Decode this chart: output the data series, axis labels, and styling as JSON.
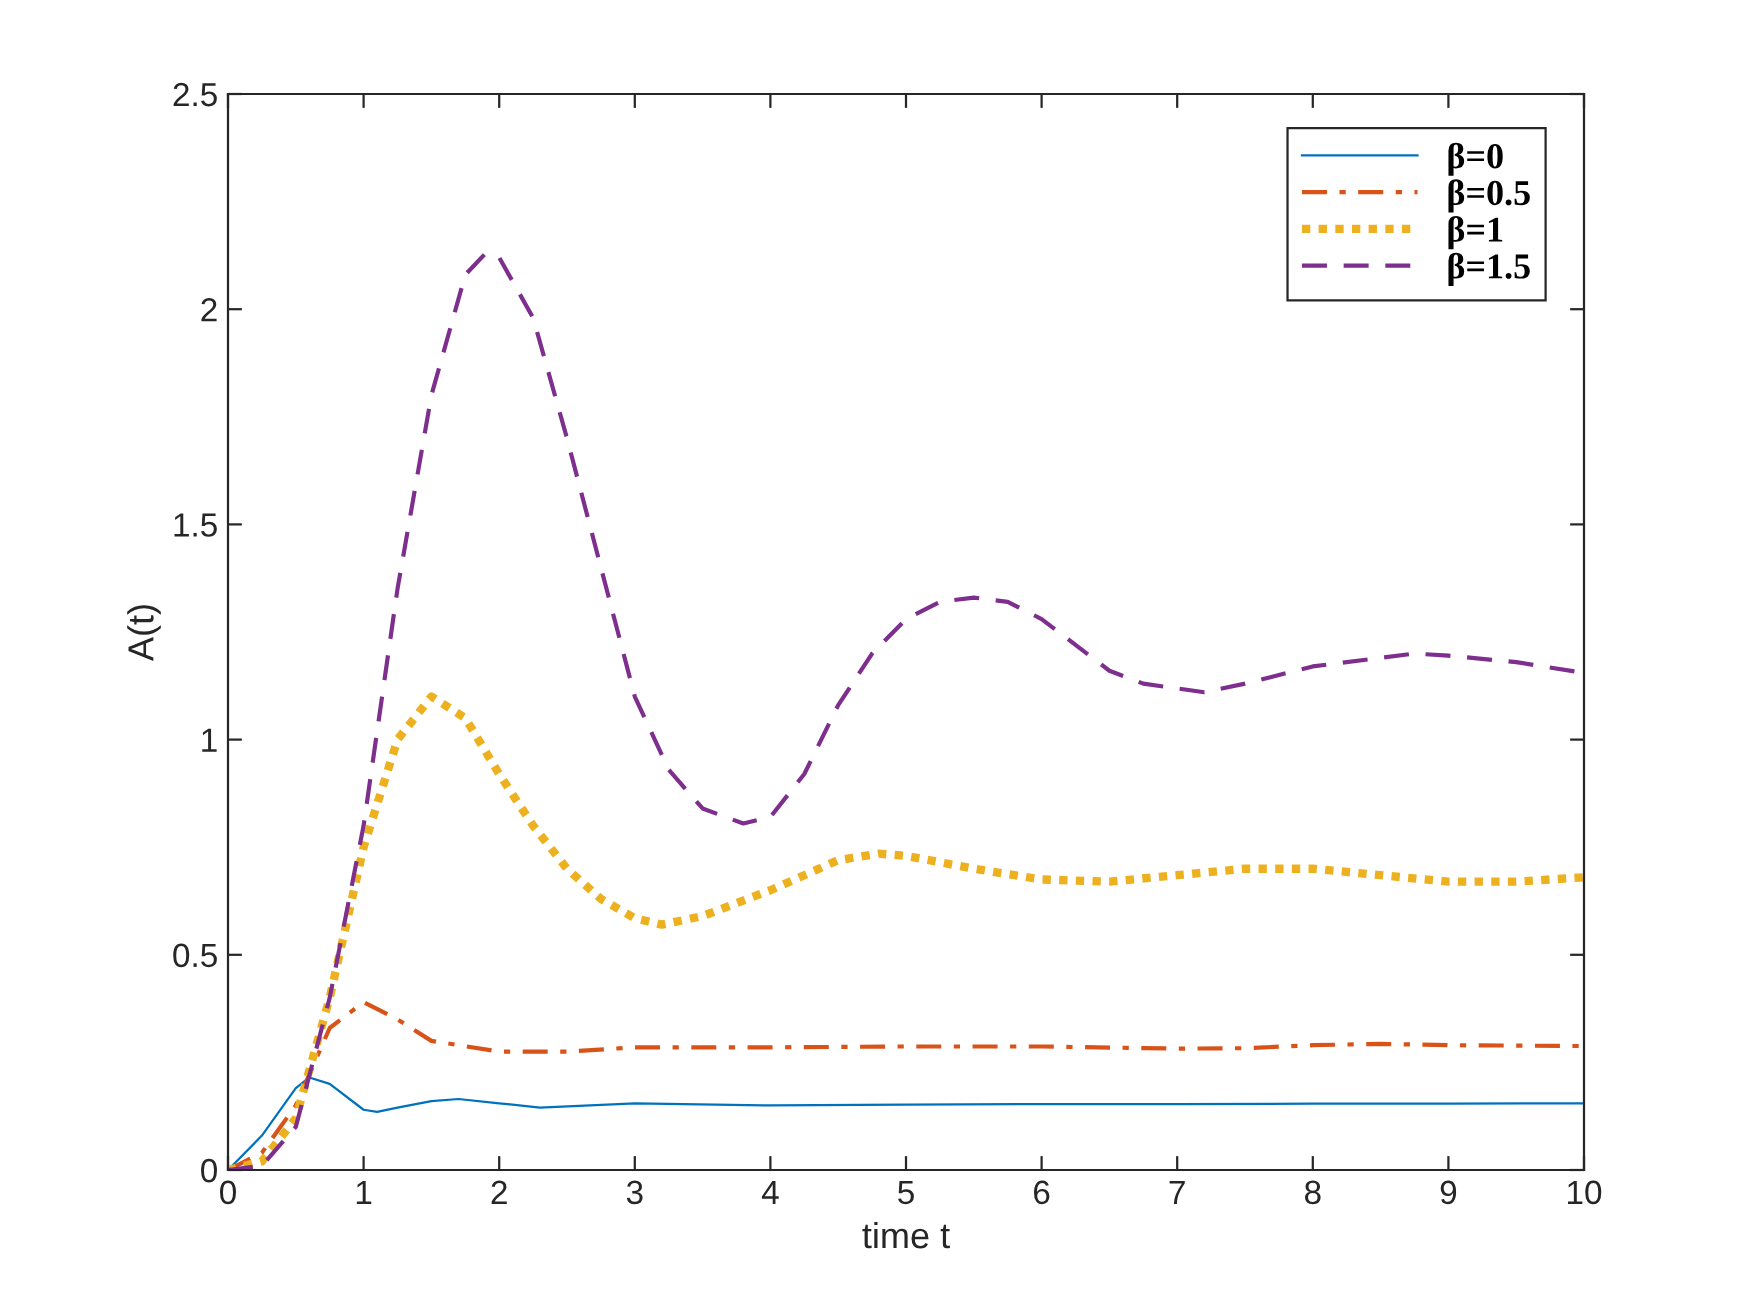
{
  "chart_data": {
    "type": "line",
    "xlabel": "time t",
    "ylabel": "A(t)",
    "xlim": [
      0,
      10
    ],
    "ylim": [
      0,
      2.5
    ],
    "xticks": [
      0,
      1,
      2,
      3,
      4,
      5,
      6,
      7,
      8,
      9,
      10
    ],
    "yticks": [
      0,
      0.5,
      1,
      1.5,
      2,
      2.5
    ],
    "grid": false,
    "legend": "top right",
    "marker": "none",
    "series": [
      {
        "name": "β=0",
        "color": "#0072bd",
        "line_style": "solid",
        "x": [
          0,
          0.25,
          0.5,
          0.6,
          0.75,
          1,
          1.1,
          1.25,
          1.5,
          1.7,
          2,
          2.3,
          3,
          4,
          5,
          6,
          7,
          8,
          9,
          10
        ],
        "values": [
          0,
          0.08,
          0.19,
          0.215,
          0.2,
          0.14,
          0.135,
          0.145,
          0.16,
          0.165,
          0.155,
          0.145,
          0.155,
          0.15,
          0.152,
          0.153,
          0.153,
          0.154,
          0.154,
          0.155
        ]
      },
      {
        "name": "β=0.5",
        "color": "#d95319",
        "line_style": "dashdot",
        "x": [
          0,
          0.25,
          0.5,
          0.75,
          1,
          1.25,
          1.5,
          2,
          2.5,
          3,
          4,
          5,
          6,
          7,
          7.5,
          8,
          8.5,
          9,
          10
        ],
        "values": [
          0,
          0.04,
          0.15,
          0.33,
          0.39,
          0.35,
          0.3,
          0.275,
          0.275,
          0.285,
          0.285,
          0.287,
          0.287,
          0.282,
          0.283,
          0.29,
          0.293,
          0.29,
          0.288
        ]
      },
      {
        "name": "β=1",
        "color": "#edb120",
        "line_style": "dotted",
        "x": [
          0,
          0.25,
          0.5,
          0.75,
          1,
          1.25,
          1.5,
          1.75,
          2,
          2.25,
          2.5,
          2.75,
          3,
          3.2,
          3.5,
          4,
          4.5,
          4.8,
          5,
          5.5,
          6,
          6.5,
          7,
          7.5,
          8,
          8.5,
          9,
          9.5,
          10
        ],
        "values": [
          0,
          0.02,
          0.12,
          0.4,
          0.75,
          1.0,
          1.1,
          1.05,
          0.92,
          0.8,
          0.7,
          0.63,
          0.585,
          0.57,
          0.59,
          0.65,
          0.72,
          0.735,
          0.73,
          0.7,
          0.675,
          0.67,
          0.685,
          0.7,
          0.7,
          0.685,
          0.67,
          0.67,
          0.68
        ]
      },
      {
        "name": "β=1.5",
        "color": "#7e2f8e",
        "line_style": "dashed",
        "x": [
          0,
          0.25,
          0.5,
          0.75,
          1,
          1.25,
          1.5,
          1.75,
          1.9,
          2,
          2.25,
          2.5,
          2.75,
          3,
          3.25,
          3.5,
          3.8,
          4,
          4.25,
          4.5,
          4.75,
          5,
          5.25,
          5.5,
          5.75,
          6,
          6.25,
          6.5,
          6.75,
          7.2,
          7.5,
          8,
          8.5,
          8.75,
          9,
          9.5,
          10
        ],
        "values": [
          0,
          0.01,
          0.1,
          0.4,
          0.8,
          1.35,
          1.8,
          2.08,
          2.13,
          2.12,
          1.98,
          1.7,
          1.4,
          1.1,
          0.93,
          0.84,
          0.805,
          0.82,
          0.92,
          1.08,
          1.2,
          1.28,
          1.32,
          1.33,
          1.32,
          1.28,
          1.22,
          1.16,
          1.13,
          1.11,
          1.13,
          1.17,
          1.19,
          1.2,
          1.195,
          1.18,
          1.155
        ]
      }
    ]
  }
}
